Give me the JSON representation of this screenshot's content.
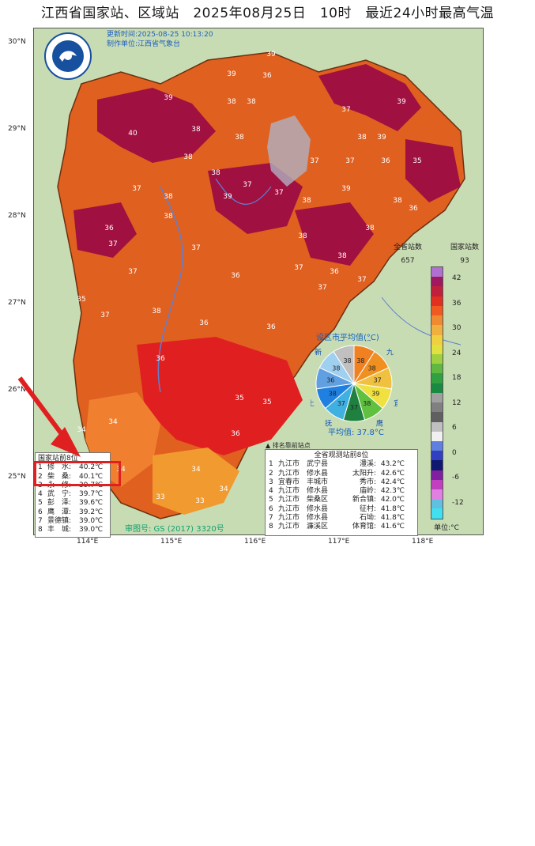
{
  "title": "江西省国家站、区域站　2025年08月25日　10时　最近24小时最高气温",
  "meta": {
    "update_time": "更新时间:2025-08-25 10:13:20",
    "producer": "制作单位:江西省气象台"
  },
  "logo": {
    "icon": "cma-logo-icon",
    "text": "CHINA METEOROLOGICAL"
  },
  "lat_ticks": [
    "30°N",
    "29°N",
    "28°N",
    "27°N",
    "26°N",
    "25°N"
  ],
  "lon_ticks": [
    "114°E",
    "115°E",
    "116°E",
    "117°E",
    "118°E"
  ],
  "legend": {
    "all_label": "全省站数",
    "all_count": "657",
    "nat_label": "国家站数",
    "nat_count": "93",
    "unit": "单位:°C",
    "ticks": [
      "42",
      "36",
      "30",
      "24",
      "18",
      "12",
      "6",
      "0",
      "-6",
      "-12"
    ],
    "colors": [
      "#b070d0",
      "#a01860",
      "#c0203c",
      "#e03020",
      "#f05a20",
      "#f08a30",
      "#f0b040",
      "#f0d040",
      "#e0e040",
      "#a0d040",
      "#60b840",
      "#30a040",
      "#1a8a40",
      "#a0a0a0",
      "#808080",
      "#606060",
      "#c0c0c0",
      "#f0f0f0",
      "#6080e0",
      "#3040c0",
      "#101870",
      "#8020a0",
      "#c040c0",
      "#e080e0",
      "#60c0e0",
      "#40e0f0"
    ]
  },
  "avg": {
    "title": "设区市平均值(°C)",
    "value": "平均值: 37.8°C",
    "cities": [
      "赣",
      "九",
      "景",
      "宜",
      "鹰",
      "萍",
      "抚",
      "上",
      "南",
      "新",
      "吉"
    ],
    "values": [
      "38",
      "38",
      "37",
      "39",
      "38",
      "37",
      "37",
      "38",
      "36",
      "38",
      "38"
    ],
    "colors": [
      "#f08020",
      "#f09020",
      "#f0c040",
      "#f0e040",
      "#60c040",
      "#208040",
      "#40b0e0",
      "#2080e0",
      "#60a0e0",
      "#a0d0f0",
      "#c0c0c0"
    ]
  },
  "rank_note": "排名靠前站点",
  "national_top": {
    "title": "国家站前8位",
    "rows": [
      {
        "rank": "1",
        "name": "修　水:",
        "val": "40.2℃"
      },
      {
        "rank": "2",
        "name": "柴　桑:",
        "val": "40.1℃"
      },
      {
        "rank": "3",
        "name": "永　修:",
        "val": "39.7℃"
      },
      {
        "rank": "4",
        "name": "武　宁:",
        "val": "39.7℃"
      },
      {
        "rank": "5",
        "name": "彭　泽:",
        "val": "39.6℃"
      },
      {
        "rank": "6",
        "name": "鹰　潭:",
        "val": "39.2℃"
      },
      {
        "rank": "7",
        "name": "景德镇:",
        "val": "39.0℃"
      },
      {
        "rank": "8",
        "name": "丰　城:",
        "val": "39.0℃"
      }
    ]
  },
  "all_top": {
    "title": "全省观测站前8位",
    "rows": [
      {
        "rank": "1",
        "city": "九江市",
        "county": "武宁县",
        "station": "澧溪:",
        "val": "43.2℃"
      },
      {
        "rank": "2",
        "city": "九江市",
        "county": "修水县",
        "station": "太阳升:",
        "val": "42.6℃"
      },
      {
        "rank": "3",
        "city": "宜春市",
        "county": "丰城市",
        "station": "秀市:",
        "val": "42.4℃"
      },
      {
        "rank": "4",
        "city": "九江市",
        "county": "修水县",
        "station": "庙岭:",
        "val": "42.3℃"
      },
      {
        "rank": "5",
        "city": "九江市",
        "county": "柴桑区",
        "station": "新合镇:",
        "val": "42.0℃"
      },
      {
        "rank": "6",
        "city": "九江市",
        "county": "修水县",
        "station": "征村:",
        "val": "41.8℃"
      },
      {
        "rank": "7",
        "city": "九江市",
        "county": "修水县",
        "station": "石坳:",
        "val": "41.8℃"
      },
      {
        "rank": "8",
        "city": "九江市",
        "county": "濂溪区",
        "station": "体育馆:",
        "val": "41.6℃"
      }
    ]
  },
  "approval": "审图号: GS (2017) 3320号",
  "map_labels": [
    "39",
    "39",
    "36",
    "38",
    "40",
    "39",
    "38",
    "38",
    "38",
    "39",
    "39",
    "37",
    "38",
    "36",
    "37",
    "37",
    "38",
    "38",
    "38",
    "37",
    "37",
    "37",
    "38",
    "36",
    "37",
    "35",
    "37",
    "36",
    "36",
    "36",
    "35",
    "34",
    "34",
    "33",
    "33",
    "34",
    "34",
    "36",
    "35",
    "36",
    "38",
    "37",
    "37",
    "38",
    "39",
    "37",
    "36",
    "38",
    "39",
    "38",
    "37",
    "38",
    "37",
    "38",
    "35",
    "36",
    "34"
  ]
}
